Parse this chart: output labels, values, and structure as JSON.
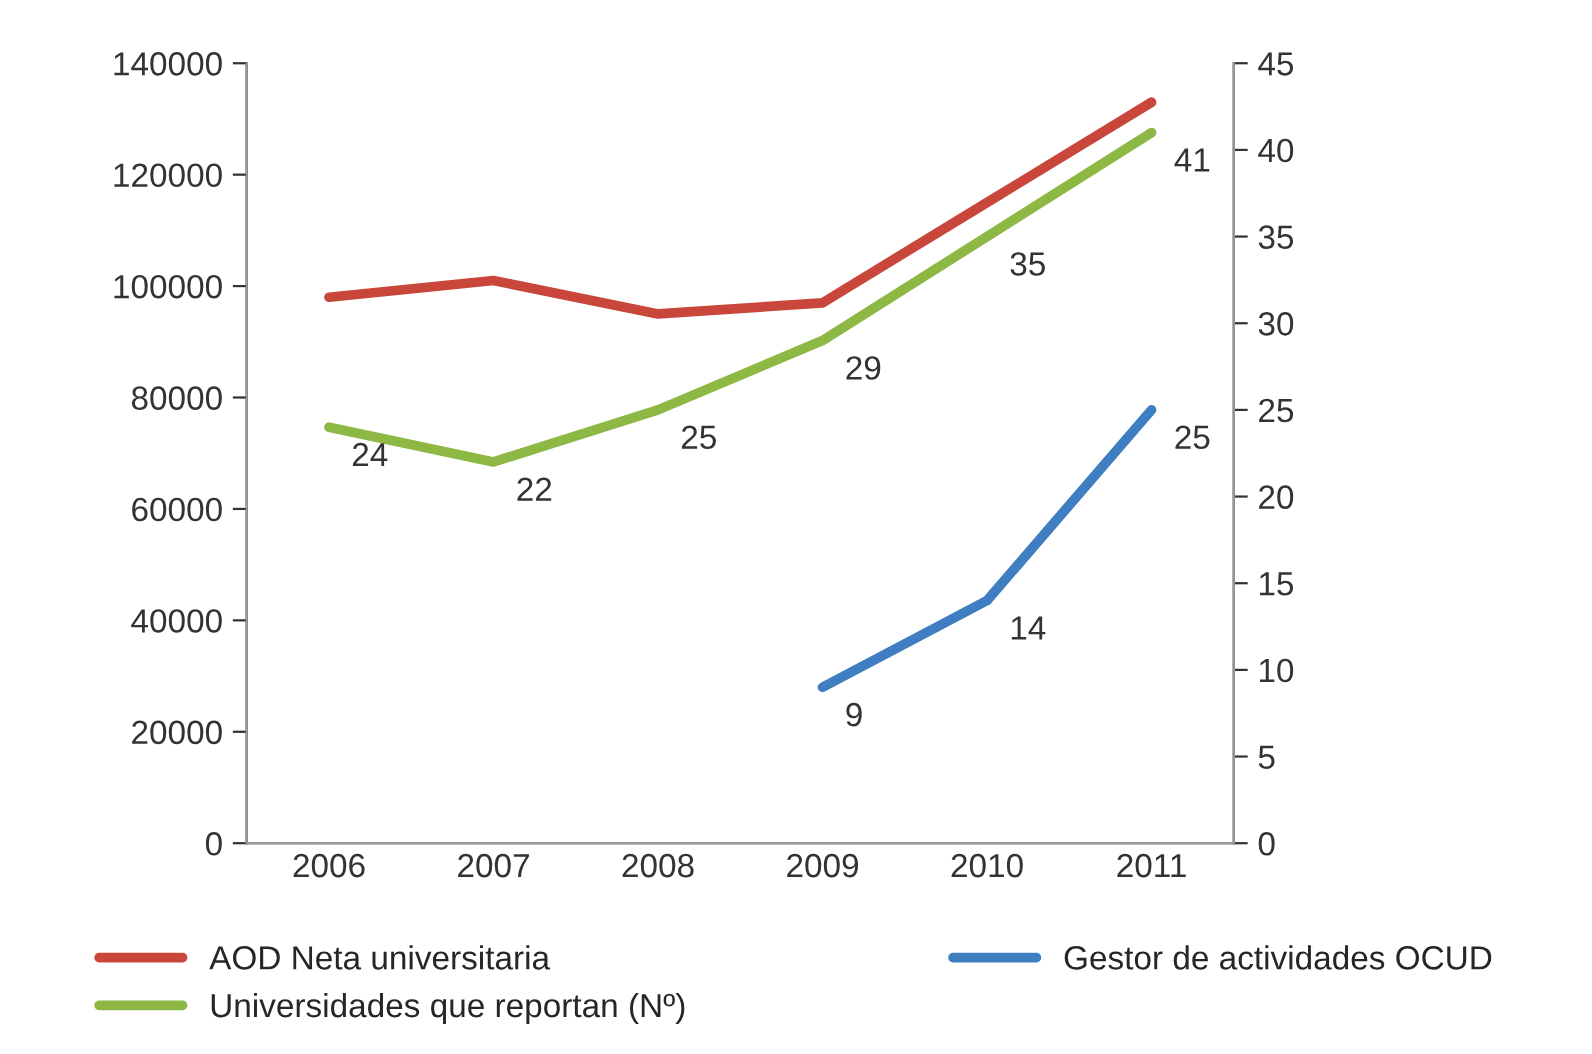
{
  "chart_data": {
    "type": "line",
    "categories": [
      "2006",
      "2007",
      "2008",
      "2009",
      "2010",
      "2011"
    ],
    "series": [
      {
        "name": "AOD Neta universitaria",
        "color": "#c8473a",
        "values": [
          98000,
          101000,
          95000,
          97000,
          115000,
          133000
        ]
      },
      {
        "name": "Universidades que reportan (Nº)",
        "color": "#8db843",
        "axis": "y2",
        "values": [
          24,
          22,
          25,
          29,
          35,
          41
        ],
        "value_labels": [
          "24",
          "22",
          "25",
          "29",
          "35",
          "41"
        ]
      },
      {
        "name": "Gestor de actividades OCUD",
        "color": "#3f7fc1",
        "axis": "y2",
        "values": [
          null,
          null,
          null,
          9,
          14,
          25
        ],
        "value_labels": [
          null,
          null,
          null,
          "9",
          "14",
          "25"
        ]
      }
    ],
    "ylim": [
      0,
      140000
    ],
    "yticks": [
      0,
      20000,
      40000,
      60000,
      80000,
      100000,
      120000,
      140000
    ],
    "y2lim": [
      0,
      45
    ],
    "y2ticks": [
      0,
      5,
      10,
      15,
      20,
      25,
      30,
      35,
      40,
      45
    ],
    "grid": false,
    "legend": "bottom"
  }
}
